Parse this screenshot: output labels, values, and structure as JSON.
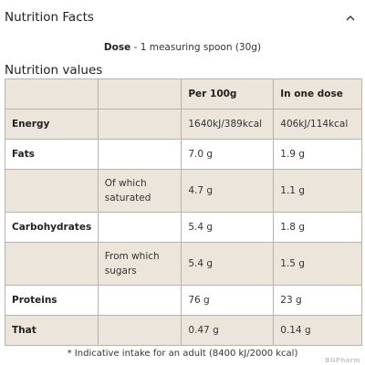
{
  "header": {
    "title": "Nutrition Facts",
    "toggle_icon": "chevron-up-icon"
  },
  "dose": {
    "label": "Dose",
    "value": "- 1 measuring spoon (30g)"
  },
  "section_title": "Nutrition values",
  "table": {
    "headers": [
      "",
      "",
      "Per 100g",
      "In one dose"
    ],
    "rows": [
      {
        "name": "Energy",
        "sub": "",
        "per100": "1640kJ/389kcal",
        "dose": "406kJ/114kcal"
      },
      {
        "name": "Fats",
        "sub": "",
        "per100": "7.0 g",
        "dose": "1.9 g"
      },
      {
        "name": "",
        "sub": "Of which saturated",
        "per100": "4.7 g",
        "dose": "1.1 g"
      },
      {
        "name": "Carbohydrates",
        "sub": "",
        "per100": "5.4 g",
        "dose": "1.8 g"
      },
      {
        "name": "",
        "sub": "From which sugars",
        "per100": "5.4 g",
        "dose": "1.5 g"
      },
      {
        "name": "Proteins",
        "sub": "",
        "per100": "76 g",
        "dose": "23 g"
      },
      {
        "name": "That",
        "sub": "",
        "per100": "0.47 g",
        "dose": "0.14 g"
      }
    ]
  },
  "footnote": "* Indicative intake for an adult (8400 kJ/2000 kcal)",
  "watermark": "BGPharm",
  "colors": {
    "beige_row": "#ebe5dc",
    "border": "#b8b2a8"
  }
}
